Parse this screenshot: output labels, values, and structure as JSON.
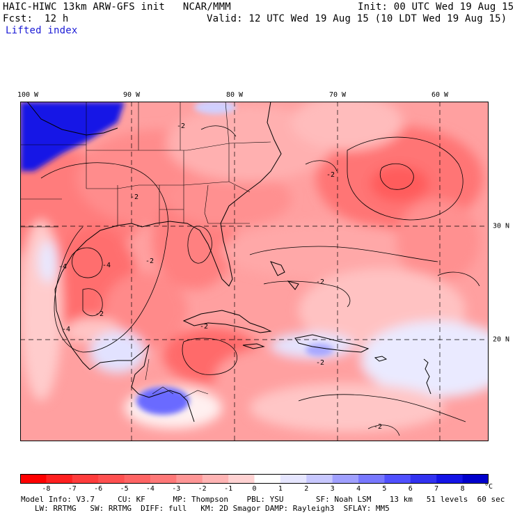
{
  "header": {
    "model_line": "HAIC-HIWC 13km ARW-GFS init   NCAR/MMM",
    "init_line": "Init: 00 UTC Wed 19 Aug 15",
    "fcst_label": "Fcst:",
    "fcst_value": "12 h",
    "valid_line": "Valid: 12 UTC Wed 19 Aug 15 (10 LDT Wed 19 Aug 15)",
    "field_name": "Lifted index"
  },
  "map": {
    "region": "Gulf of Mexico, Caribbean and western Atlantic",
    "lon_labels": [
      "100 W",
      "90 W",
      "80 W",
      "70 W",
      "60 W"
    ],
    "lat_labels": [
      "30 N",
      "20 N"
    ],
    "contour_labels": [
      "-2",
      "-4",
      "-2",
      "-2",
      "-4",
      "-2",
      "-4",
      "-2",
      "-2",
      "-2",
      "-2",
      "-2"
    ],
    "colors": {
      "strong_positive": "#1414e6",
      "land_lines": "#000000",
      "background": "#ffffff"
    }
  },
  "colorbar": {
    "ticks": [
      "-8",
      "-7",
      "-6",
      "-5",
      "-4",
      "-3",
      "-2",
      "-1",
      "0",
      "1",
      "2",
      "3",
      "4",
      "5",
      "6",
      "7",
      "8"
    ],
    "unit": "°C",
    "colors": [
      "#ff0000",
      "#ff2020",
      "#ff3c3c",
      "#ff5050",
      "#ff6464",
      "#ff7878",
      "#ff9696",
      "#ffb4b4",
      "#ffd2d2",
      "#ffffff",
      "#e6e6ff",
      "#c8c8ff",
      "#a0a0ff",
      "#7878ff",
      "#5050ff",
      "#3232f0",
      "#1414e6",
      "#0000cc"
    ]
  },
  "footer": {
    "line1": "Model Info: V3.7     CU: KF      MP: Thompson    PBL: YSU       SF: Noah LSM    13 km   51 levels  60 sec",
    "line2": "   LW: RRTMG   SW: RRTMG  DIFF: full   KM: 2D Smagor DAMP: Rayleigh3  SFLAY: MM5"
  }
}
